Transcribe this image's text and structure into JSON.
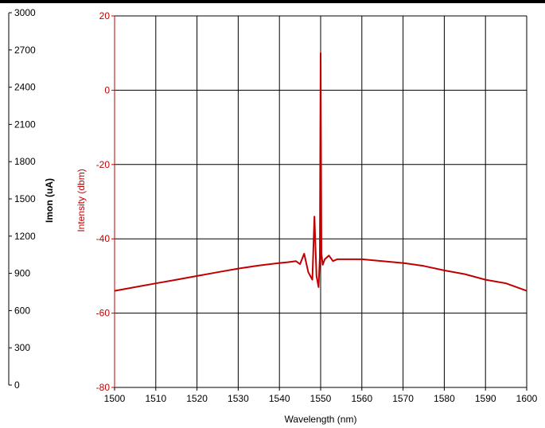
{
  "colors": {
    "intensity": "#c00000",
    "imon_axis": "#000000",
    "grid": "#000000",
    "background": "#ffffff"
  },
  "chart_data": {
    "type": "line",
    "xlabel": "Wavelength (nm)",
    "ylabel_left_outer": "Imon (uA)",
    "ylabel_left_inner": "Intensity (dbm)",
    "x_range": [
      1500,
      1600
    ],
    "x_ticks": [
      "1500",
      "1510",
      "1520",
      "1530",
      "1540",
      "1550",
      "1560",
      "1570",
      "1580",
      "1590",
      "1600"
    ],
    "y_range": [
      -80,
      20
    ],
    "y_ticks": [
      "20",
      "0",
      "-20",
      "-40",
      "-60",
      "-80"
    ],
    "imon_range": [
      0,
      3000
    ],
    "imon_ticks": [
      "3000",
      "2700",
      "2400",
      "2100",
      "1800",
      "1500",
      "1200",
      "900",
      "600",
      "300",
      "0"
    ],
    "grid": true,
    "series": [
      {
        "color": "#c00000",
        "x": [
          1500,
          1505,
          1510,
          1515,
          1520,
          1525,
          1530,
          1535,
          1540,
          1542,
          1544,
          1545,
          1546,
          1547,
          1548,
          1548.5,
          1549,
          1549.5,
          1549.8,
          1550,
          1550.2,
          1550.5,
          1551,
          1552,
          1553,
          1554,
          1556,
          1560,
          1565,
          1570,
          1575,
          1580,
          1585,
          1590,
          1595,
          1600
        ],
        "values": [
          -54,
          -53,
          -52,
          -51,
          -50,
          -49,
          -48,
          -47.2,
          -46.5,
          -46.3,
          -46,
          -46.8,
          -44,
          -49,
          -51,
          -34,
          -50,
          -53,
          -45,
          10,
          -44,
          -47,
          -45.5,
          -44.5,
          -46,
          -45.5,
          -45.5,
          -45.5,
          -46,
          -46.5,
          -47.3,
          -48.5,
          -49.5,
          -51,
          -52,
          -54
        ]
      }
    ]
  }
}
